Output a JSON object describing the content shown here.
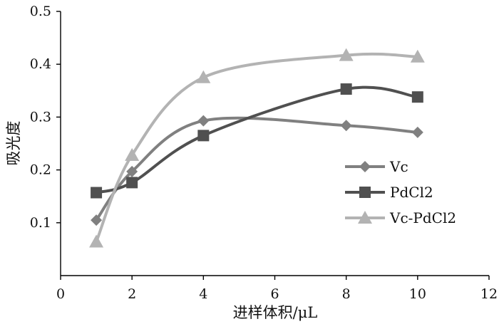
{
  "chart_data": {
    "type": "line",
    "title": "",
    "xlabel": "进样体积/μL",
    "ylabel": "吸光度",
    "xlim": [
      0,
      12
    ],
    "ylim": [
      0,
      0.5
    ],
    "x_ticks": [
      "0",
      "2",
      "4",
      "6",
      "8",
      "10",
      "12"
    ],
    "y_ticks": [
      "0.1",
      "0.2",
      "0.3",
      "0.4",
      "0.5"
    ],
    "grid": false,
    "smooth": true,
    "legend_position": "right",
    "x": [
      1,
      2,
      4,
      8,
      10
    ],
    "series": [
      {
        "name": "Vc",
        "marker": "diamond",
        "color": "#808080",
        "values": [
          0.105,
          0.197,
          0.293,
          0.284,
          0.271
        ]
      },
      {
        "name": "PdCl2",
        "marker": "square",
        "color": "#505050",
        "values": [
          0.157,
          0.176,
          0.265,
          0.353,
          0.338
        ]
      },
      {
        "name": "Vc-PdCl2",
        "marker": "triangle",
        "color": "#b3b3b3",
        "values": [
          0.064,
          0.228,
          0.375,
          0.417,
          0.414
        ]
      }
    ]
  }
}
